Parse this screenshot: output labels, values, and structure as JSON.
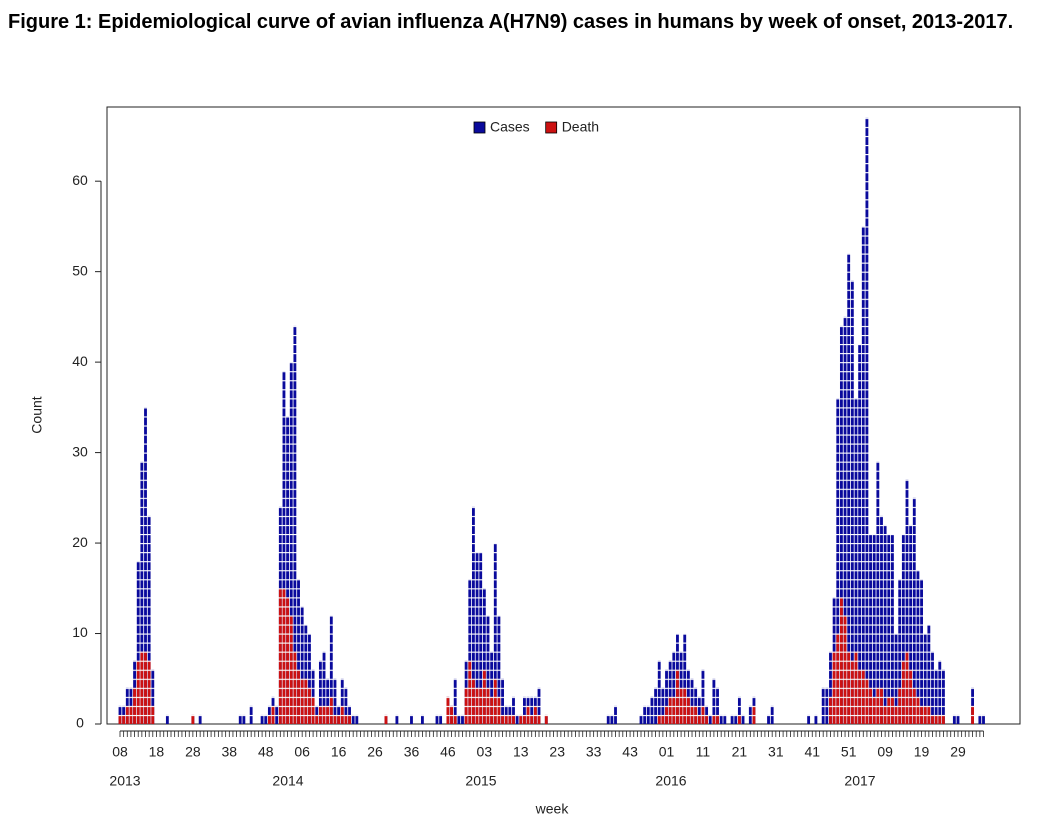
{
  "chart_data": {
    "type": "bar",
    "title": "Figure 1: Epidemiological curve of avian influenza A(H7N9) cases in humans by week of onset, 2013-2017.",
    "xlabel": "week",
    "ylabel": "Count",
    "years": [
      "2013",
      "2014",
      "2015",
      "2016",
      "2017"
    ],
    "categories": [
      "08",
      null,
      null,
      null,
      null,
      null,
      null,
      null,
      null,
      null,
      "18",
      null,
      null,
      null,
      null,
      null,
      null,
      null,
      null,
      null,
      "28",
      null,
      null,
      null,
      null,
      null,
      null,
      null,
      null,
      null,
      "38",
      null,
      null,
      null,
      null,
      null,
      null,
      null,
      null,
      null,
      "48",
      null,
      null,
      null,
      null,
      null,
      null,
      null,
      null,
      null,
      "06",
      null,
      null,
      null,
      null,
      null,
      null,
      null,
      null,
      null,
      "16",
      null,
      null,
      null,
      null,
      null,
      null,
      null,
      null,
      null,
      "26",
      null,
      null,
      null,
      null,
      null,
      null,
      null,
      null,
      null,
      "36",
      null,
      null,
      null,
      null,
      null,
      null,
      null,
      null,
      null,
      "46",
      null,
      null,
      null,
      null,
      null,
      null,
      null,
      null,
      null,
      "03",
      null,
      null,
      null,
      null,
      null,
      null,
      null,
      null,
      null,
      "13",
      null,
      null,
      null,
      null,
      null,
      null,
      null,
      null,
      null,
      "23",
      null,
      null,
      null,
      null,
      null,
      null,
      null,
      null,
      null,
      "33",
      null,
      null,
      null,
      null,
      null,
      null,
      null,
      null,
      null,
      "43",
      null,
      null,
      null,
      null,
      null,
      null,
      null,
      null,
      null,
      "01",
      null,
      null,
      null,
      null,
      null,
      null,
      null,
      null,
      null,
      "11",
      null,
      null,
      null,
      null,
      null,
      null,
      null,
      null,
      null,
      "21",
      null,
      null,
      null,
      null,
      null,
      null,
      null,
      null,
      null,
      "31",
      null,
      null,
      null,
      null,
      null,
      null,
      null,
      null,
      null,
      "41",
      null,
      null,
      null,
      null,
      null,
      null,
      null,
      null,
      null,
      "51",
      null,
      null,
      null,
      null,
      null,
      null,
      null,
      null,
      null,
      "09",
      null,
      null,
      null,
      null,
      null,
      null,
      null,
      null,
      null,
      "19",
      null,
      null,
      null,
      null,
      null,
      null,
      null,
      null,
      null,
      "29",
      null,
      null,
      null,
      null,
      null,
      null,
      null
    ],
    "series": [
      {
        "name": "Cases",
        "color": "#0a0a9c",
        "values": [
          2,
          2,
          4,
          4,
          7,
          18,
          29,
          35,
          23,
          6,
          0,
          0,
          0,
          1,
          0,
          0,
          0,
          0,
          0,
          0,
          1,
          0,
          1,
          0,
          0,
          0,
          0,
          0,
          0,
          0,
          0,
          0,
          0,
          1,
          1,
          0,
          2,
          0,
          0,
          1,
          1,
          2,
          3,
          2,
          24,
          39,
          34,
          40,
          44,
          16,
          13,
          11,
          10,
          6,
          2,
          7,
          8,
          5,
          12,
          5,
          2,
          5,
          4,
          2,
          1,
          1,
          0,
          0,
          0,
          0,
          0,
          0,
          0,
          1,
          0,
          0,
          1,
          0,
          0,
          0,
          1,
          0,
          0,
          1,
          0,
          0,
          0,
          1,
          1,
          0,
          3,
          2,
          5,
          1,
          1,
          7,
          16,
          24,
          19,
          19,
          15,
          12,
          8,
          20,
          12,
          5,
          2,
          2,
          3,
          1,
          1,
          3,
          3,
          3,
          3,
          4,
          0,
          1,
          0,
          0,
          0,
          0,
          0,
          0,
          0,
          0,
          0,
          0,
          0,
          0,
          0,
          0,
          0,
          0,
          1,
          1,
          2,
          0,
          0,
          0,
          0,
          0,
          0,
          1,
          2,
          2,
          3,
          4,
          7,
          4,
          6,
          7,
          8,
          10,
          8,
          10,
          6,
          5,
          4,
          3,
          6,
          2,
          1,
          5,
          4,
          1,
          1,
          0,
          1,
          1,
          3,
          1,
          0,
          2,
          3,
          0,
          0,
          0,
          1,
          2,
          0,
          0,
          0,
          0,
          0,
          0,
          0,
          0,
          0,
          1,
          0,
          1,
          0,
          4,
          4,
          8,
          14,
          36,
          44,
          45,
          52,
          49,
          36,
          42,
          55,
          67,
          21,
          21,
          29,
          23,
          22,
          21,
          21,
          10,
          16,
          21,
          27,
          22,
          25,
          17,
          16,
          10,
          11,
          8,
          6,
          7,
          6,
          0,
          0,
          1,
          1,
          0,
          0,
          0,
          4,
          0,
          1,
          1
        ]
      },
      {
        "name": "Death",
        "color": "#cc1111",
        "values": [
          1,
          1,
          2,
          2,
          4,
          7,
          8,
          8,
          7,
          2,
          0,
          0,
          0,
          0,
          0,
          0,
          0,
          0,
          0,
          0,
          1,
          0,
          0,
          0,
          0,
          0,
          0,
          0,
          0,
          0,
          0,
          0,
          0,
          0,
          0,
          0,
          0,
          0,
          0,
          0,
          0,
          1,
          2,
          0,
          15,
          15,
          14,
          12,
          8,
          6,
          5,
          5,
          4,
          3,
          1,
          2,
          2,
          2,
          3,
          1,
          1,
          2,
          1,
          1,
          0,
          0,
          0,
          0,
          0,
          0,
          0,
          0,
          0,
          1,
          0,
          0,
          0,
          0,
          0,
          0,
          0,
          0,
          0,
          0,
          0,
          0,
          0,
          0,
          0,
          0,
          3,
          2,
          1,
          0,
          0,
          4,
          7,
          5,
          4,
          4,
          6,
          4,
          3,
          5,
          3,
          1,
          1,
          1,
          1,
          0,
          1,
          1,
          2,
          1,
          2,
          1,
          0,
          1,
          0,
          0,
          0,
          0,
          0,
          0,
          0,
          0,
          0,
          0,
          0,
          0,
          0,
          0,
          0,
          0,
          0,
          0,
          0,
          0,
          0,
          0,
          0,
          0,
          0,
          0,
          0,
          0,
          0,
          0,
          1,
          1,
          2,
          3,
          3,
          6,
          4,
          4,
          3,
          2,
          2,
          1,
          2,
          1,
          0,
          1,
          1,
          0,
          0,
          0,
          0,
          0,
          1,
          0,
          0,
          0,
          2,
          0,
          0,
          0,
          0,
          0,
          0,
          0,
          0,
          0,
          0,
          0,
          0,
          0,
          0,
          0,
          0,
          0,
          0,
          0,
          0,
          3,
          8,
          10,
          14,
          12,
          8,
          7,
          8,
          6,
          6,
          5,
          4,
          3,
          4,
          4,
          2,
          3,
          3,
          2,
          4,
          7,
          8,
          6,
          4,
          3,
          2,
          2,
          2,
          1,
          1,
          1,
          1,
          0,
          0,
          0,
          0,
          0,
          0,
          0,
          2,
          0,
          0,
          0
        ]
      }
    ],
    "ylim": [
      0,
      68.2
    ],
    "yticks": [
      0,
      10,
      20,
      30,
      40,
      50,
      60
    ],
    "legend": "top"
  }
}
